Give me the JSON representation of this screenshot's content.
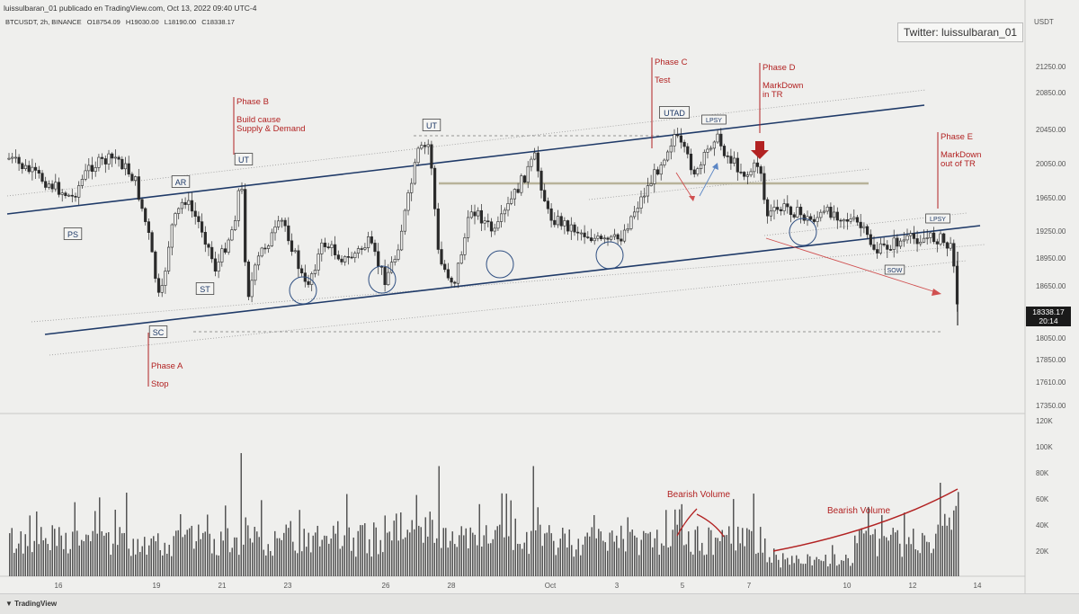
{
  "header": {
    "publish_line": "luissulbaran_01 publicado en TradingView.com, Oct 13, 2022 09:40 UTC-4",
    "symbol": "BTCUSDT, 2h, BINANCE",
    "open": "O18754.09",
    "high": "H19030.00",
    "low": "L18190.00",
    "close": "C18338.17",
    "currency": "USDT"
  },
  "twitter_label": "Twitter: luissulbaran_01",
  "last_price": {
    "value": "18338.17",
    "countdown": "20:14",
    "price": 18338.17
  },
  "footer": {
    "logo_text": "TradingView"
  },
  "colors": {
    "background": "#efefed",
    "candle": "#2a2a2a",
    "channel_line": "#1f3a68",
    "annotation_red": "#b22222",
    "volume_bar": "#555555"
  },
  "chart_data": {
    "type": "candlestick",
    "price_axis": {
      "ticks": [
        17350,
        17610,
        17850,
        18050,
        18350,
        18650,
        18950,
        19250,
        19650,
        20050,
        20450,
        20850,
        21250
      ],
      "tick_labels": [
        "17350.00",
        "17610.00",
        "17850.00",
        "18050.00",
        "18350.00",
        "18650.00",
        "18950.00",
        "19250.00",
        "19650.00",
        "20050.00",
        "20450.00",
        "20850.00",
        "21250.00"
      ]
    },
    "volume_axis": {
      "ticks": [
        20000,
        40000,
        60000,
        80000,
        100000,
        120000
      ],
      "tick_labels": [
        "20K",
        "40K",
        "60K",
        "80K",
        "100K",
        "120K"
      ]
    },
    "time_axis": {
      "labels": [
        "16",
        "19",
        "21",
        "23",
        "26",
        "28",
        "Oct",
        "3",
        "5",
        "7",
        "10",
        "12",
        "14"
      ]
    },
    "phase_labels": [
      {
        "title": "Phase A",
        "detail": "Stop"
      },
      {
        "title": "Phase B",
        "detail": "Build cause\nSupply & Demand"
      },
      {
        "title": "Phase C",
        "detail": "Test"
      },
      {
        "title": "Phase D",
        "detail": "MarkDown\nin TR"
      },
      {
        "title": "Phase E",
        "detail": "MarkDown\nout of TR"
      }
    ],
    "event_labels": [
      "PS",
      "SC",
      "AR",
      "ST",
      "UT",
      "UT",
      "UTAD",
      "LPSY",
      "LPSY",
      "SOW"
    ],
    "volume_annotations": [
      "Bearish Volume",
      "Bearish Volume"
    ]
  }
}
